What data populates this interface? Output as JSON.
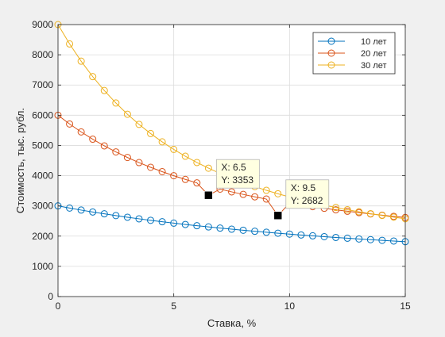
{
  "chart_data": {
    "type": "line",
    "title": "",
    "xlabel": "Ставка, %",
    "ylabel": "Стоимость, тыс. рубл.",
    "xlim": [
      0,
      15
    ],
    "ylim": [
      0,
      9000
    ],
    "xticks": [
      0,
      5,
      10,
      15
    ],
    "yticks": [
      0,
      1000,
      2000,
      3000,
      4000,
      5000,
      6000,
      7000,
      8000,
      9000
    ],
    "grid": true,
    "legend_position": "top-right",
    "x": [
      0,
      0.5,
      1,
      1.5,
      2,
      2.5,
      3,
      3.5,
      4,
      4.5,
      5,
      5.5,
      6,
      6.5,
      7,
      7.5,
      8,
      8.5,
      9,
      9.5,
      10,
      10.5,
      11,
      11.5,
      12,
      12.5,
      13,
      13.5,
      14,
      14.5,
      15
    ],
    "series": [
      {
        "name": "10 лет",
        "color": "#0072bd",
        "values": [
          3000,
          2929,
          2862,
          2799,
          2738,
          2680,
          2625,
          2573,
          2523,
          2475,
          2430,
          2386,
          2344,
          2305,
          2266,
          2230,
          2195,
          2161,
          2128,
          2097,
          2067,
          2038,
          2010,
          1982,
          1956,
          1931,
          1906,
          1883,
          1860,
          1838,
          1816
        ]
      },
      {
        "name": "20 лет",
        "color": "#d95319",
        "values": [
          6000,
          5711,
          5448,
          5207,
          4987,
          4786,
          4602,
          4433,
          4277,
          4133,
          3999,
          3876,
          3761,
          3353,
          3556,
          3465,
          3380,
          3301,
          3227,
          2682,
          3093,
          3033,
          2976,
          2922,
          2871,
          2823,
          2777,
          2734,
          2693,
          2654,
          2617
        ]
      },
      {
        "name": "30 лет",
        "color": "#edb120",
        "values": [
          9000,
          8360,
          7789,
          7277,
          6818,
          6405,
          6033,
          5698,
          5394,
          5119,
          4870,
          4643,
          4436,
          4248,
          4075,
          3917,
          3772,
          3638,
          3515,
          3402,
          3296,
          3199,
          3109,
          3025,
          2947,
          2874,
          2806,
          2743,
          2684,
          2628,
          2576
        ]
      }
    ],
    "datatips": [
      {
        "x_label": "X: 6.5",
        "y_label": "Y: 3353",
        "x": 6.5,
        "y": 3353
      },
      {
        "x_label": "X: 9.5",
        "y_label": "Y: 2682",
        "x": 9.5,
        "y": 2682
      }
    ]
  }
}
